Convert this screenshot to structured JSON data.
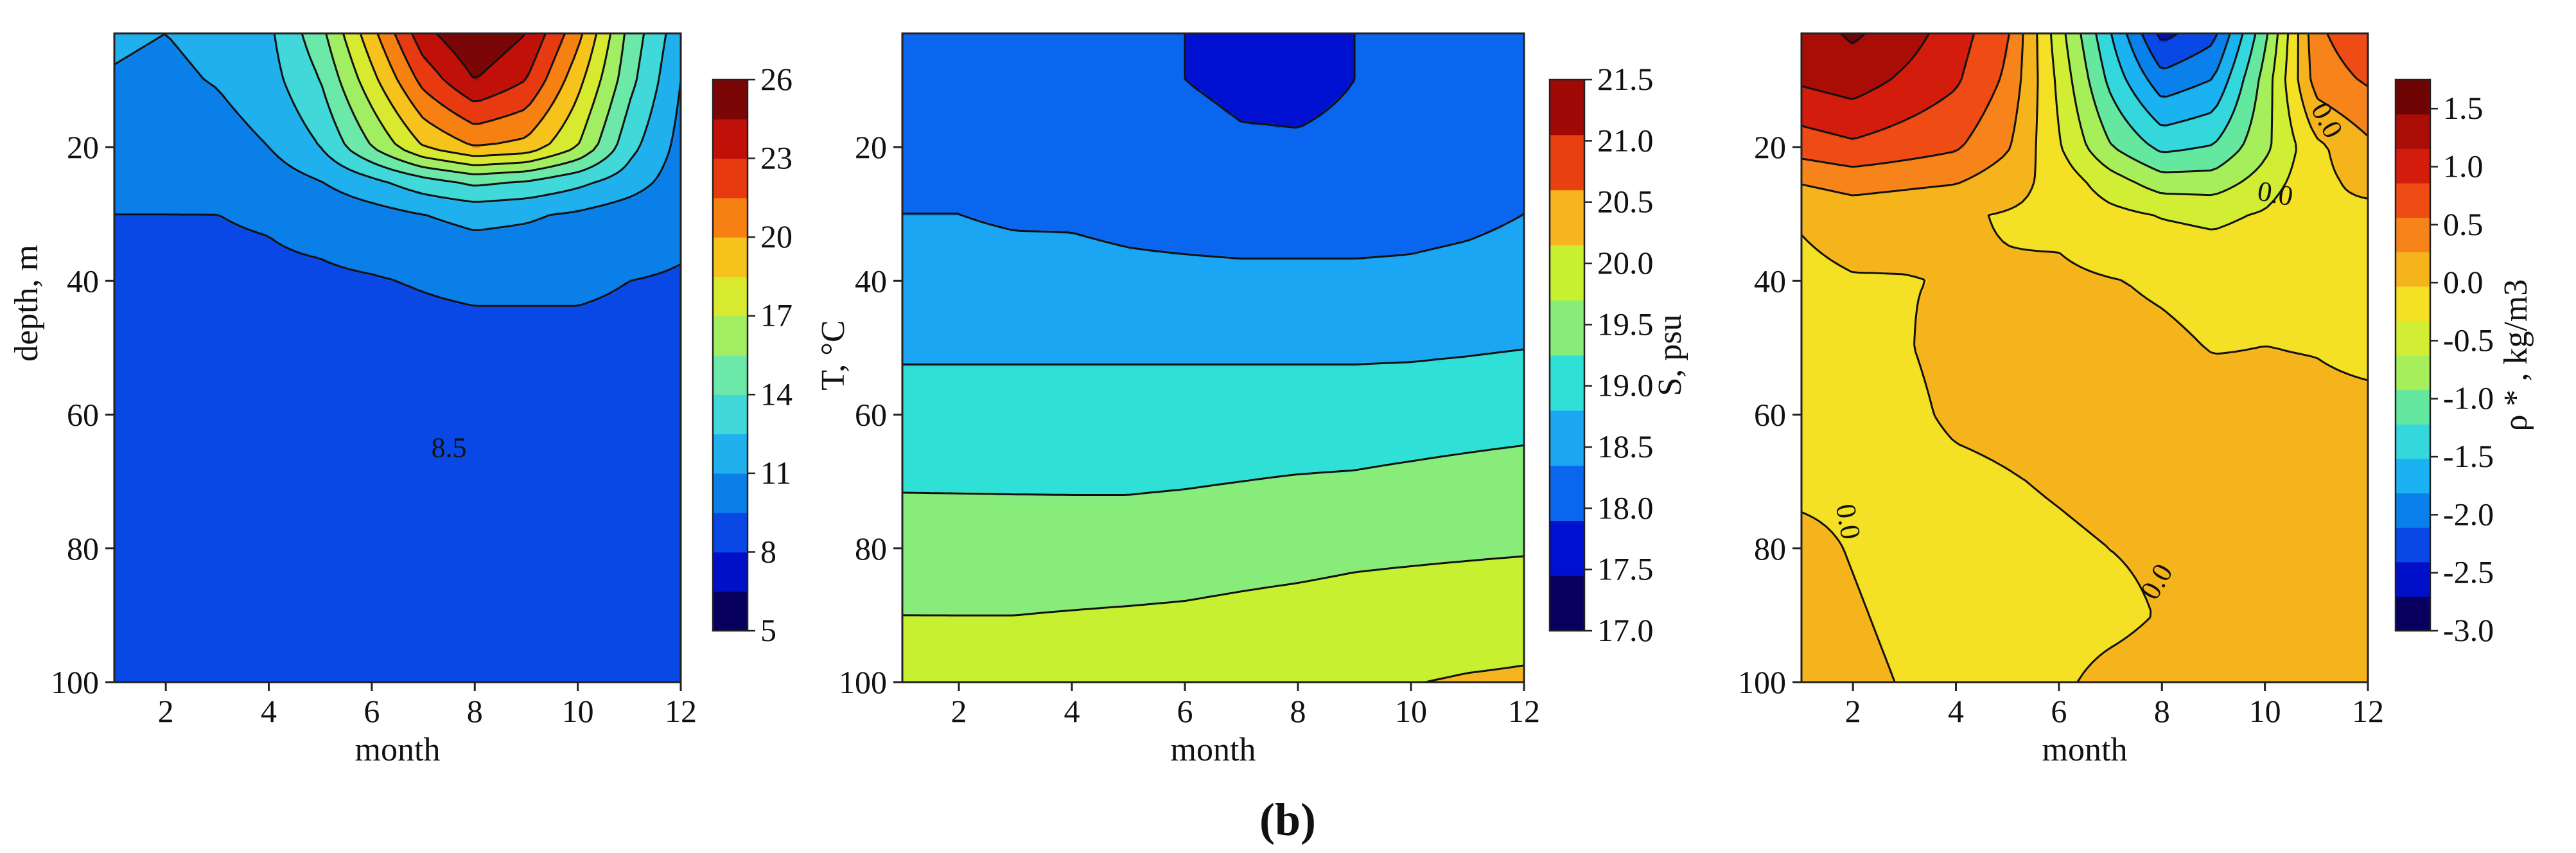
{
  "figure": {
    "panel_label": "(b)"
  },
  "chart_data": [
    {
      "type": "heatmap",
      "variable": "temperature",
      "xlabel": "month",
      "ylabel": "depth, m",
      "x_ticks": [
        2,
        4,
        6,
        8,
        10,
        12
      ],
      "y_ticks": [
        20,
        40,
        60,
        80,
        100
      ],
      "xlim": [
        1,
        12
      ],
      "ylim": [
        100,
        3
      ],
      "colorbar": {
        "label": "T, °C",
        "ticks": [
          26,
          23,
          20,
          17,
          14,
          11,
          8,
          5
        ],
        "range": [
          5,
          26
        ],
        "colors": [
          "#08005e",
          "#0010c8",
          "#0a48e6",
          "#0a7fe8",
          "#20b0ee",
          "#40d8d8",
          "#6ce8a8",
          "#a2ee62",
          "#d8ea30",
          "#f6c21c",
          "#f68012",
          "#e83a10",
          "#c01008",
          "#7a0606"
        ]
      },
      "contour_labels": [
        "8.5"
      ],
      "field": {
        "x": [
          1,
          2,
          3,
          4,
          5,
          6,
          7,
          8,
          9,
          10,
          11,
          12
        ],
        "depth": [
          3,
          10,
          20,
          25,
          30,
          40,
          50,
          60,
          70,
          80,
          90,
          100
        ],
        "values": [
          [
            11.2,
            11.0,
            11.4,
            12.2,
            15.0,
            19.5,
            24.0,
            26.0,
            24.5,
            20.5,
            15.0,
            11.5
          ],
          [
            10.9,
            10.7,
            11.1,
            11.9,
            14.0,
            18.0,
            22.0,
            24.5,
            23.0,
            19.0,
            14.5,
            11.0
          ],
          [
            10.0,
            9.9,
            10.3,
            11.0,
            12.5,
            15.5,
            18.5,
            20.0,
            19.5,
            17.0,
            13.0,
            10.5
          ],
          [
            9.8,
            9.6,
            9.8,
            10.2,
            11.0,
            12.2,
            13.5,
            14.5,
            14.0,
            13.0,
            11.8,
            10.2
          ],
          [
            9.5,
            9.5,
            9.5,
            9.6,
            9.9,
            10.4,
            11.0,
            11.4,
            11.2,
            10.8,
            10.2,
            9.8
          ],
          [
            9.2,
            9.4,
            9.3,
            9.3,
            9.3,
            9.4,
            9.6,
            9.8,
            9.8,
            9.8,
            9.5,
            9.4
          ],
          [
            8.9,
            9.0,
            9.0,
            9.0,
            9.0,
            9.0,
            9.0,
            9.0,
            9.0,
            9.0,
            9.0,
            9.0
          ],
          [
            8.6,
            8.5,
            8.5,
            8.5,
            8.5,
            8.5,
            8.5,
            8.6,
            8.6,
            8.7,
            8.8,
            8.9
          ],
          [
            8.3,
            8.3,
            8.3,
            8.3,
            8.3,
            8.3,
            8.3,
            8.3,
            8.3,
            8.4,
            8.5,
            8.6
          ],
          [
            8.2,
            8.2,
            8.2,
            8.2,
            8.2,
            8.2,
            8.2,
            8.2,
            8.2,
            8.3,
            8.4,
            8.5
          ],
          [
            8.1,
            8.1,
            8.1,
            8.1,
            8.1,
            8.1,
            8.1,
            8.1,
            8.1,
            8.2,
            8.3,
            8.4
          ],
          [
            8.0,
            8.0,
            8.0,
            8.0,
            8.0,
            8.0,
            8.0,
            8.0,
            8.0,
            8.1,
            8.2,
            8.3
          ]
        ]
      }
    },
    {
      "type": "heatmap",
      "variable": "salinity",
      "xlabel": "month",
      "ylabel": "",
      "x_ticks": [
        2,
        4,
        6,
        8,
        10,
        12
      ],
      "y_ticks": [
        20,
        40,
        60,
        80,
        100
      ],
      "xlim": [
        1,
        12
      ],
      "ylim": [
        100,
        3
      ],
      "colorbar": {
        "label": "S, psu",
        "ticks": [
          21.5,
          21.0,
          20.5,
          20.0,
          19.5,
          19.0,
          18.5,
          18.0,
          17.5,
          17.0
        ],
        "range": [
          17.0,
          21.5
        ],
        "colors": [
          "#08005e",
          "#0010d0",
          "#0a66ee",
          "#1aa6f2",
          "#2ee0d6",
          "#88ec7a",
          "#c6f030",
          "#f6b41e",
          "#e84010",
          "#a00a06"
        ]
      },
      "contour_labels": [],
      "field": {
        "x": [
          1,
          2,
          3,
          4,
          5,
          6,
          7,
          8,
          9,
          10,
          11,
          12
        ],
        "depth": [
          3,
          10,
          20,
          25,
          30,
          40,
          45,
          60,
          70,
          80,
          90,
          100
        ],
        "values": [
          [
            18.2,
            18.2,
            18.1,
            18.0,
            17.95,
            17.9,
            17.85,
            17.85,
            17.9,
            17.95,
            18.1,
            18.2
          ],
          [
            18.2,
            18.2,
            18.1,
            18.05,
            17.95,
            17.9,
            17.85,
            17.85,
            17.9,
            17.95,
            18.1,
            18.2
          ],
          [
            18.25,
            18.25,
            18.2,
            18.1,
            18.05,
            17.98,
            17.93,
            17.92,
            17.94,
            18.05,
            18.15,
            18.25
          ],
          [
            18.3,
            18.3,
            18.25,
            18.2,
            18.1,
            18.05,
            18.02,
            18.01,
            18.02,
            18.1,
            18.2,
            18.3
          ],
          [
            18.35,
            18.35,
            18.3,
            18.3,
            18.25,
            18.2,
            18.15,
            18.15,
            18.15,
            18.2,
            18.25,
            18.35
          ],
          [
            18.5,
            18.5,
            18.5,
            18.48,
            18.45,
            18.45,
            18.45,
            18.45,
            18.45,
            18.45,
            18.5,
            18.55
          ],
          [
            18.6,
            18.6,
            18.6,
            18.6,
            18.6,
            18.6,
            18.6,
            18.6,
            18.6,
            18.6,
            18.62,
            18.65
          ],
          [
            19.0,
            19.0,
            19.0,
            19.0,
            19.0,
            19.0,
            19.0,
            19.0,
            19.0,
            19.02,
            19.05,
            19.08
          ],
          [
            19.2,
            19.2,
            19.2,
            19.2,
            19.2,
            19.22,
            19.25,
            19.28,
            19.3,
            19.35,
            19.4,
            19.45
          ],
          [
            19.5,
            19.48,
            19.46,
            19.45,
            19.45,
            19.48,
            19.52,
            19.55,
            19.6,
            19.62,
            19.64,
            19.66
          ],
          [
            19.7,
            19.7,
            19.7,
            19.72,
            19.74,
            19.76,
            19.8,
            19.84,
            19.88,
            19.92,
            19.96,
            20.0
          ],
          [
            19.9,
            19.9,
            19.92,
            19.95,
            19.98,
            20.02,
            20.05,
            20.08,
            20.11,
            20.14,
            20.18,
            20.2
          ]
        ]
      }
    },
    {
      "type": "heatmap",
      "variable": "density anomaly",
      "xlabel": "month",
      "ylabel": "",
      "x_ticks": [
        2,
        4,
        6,
        8,
        10,
        12
      ],
      "y_ticks": [
        20,
        40,
        60,
        80,
        100
      ],
      "xlim": [
        1,
        12
      ],
      "ylim": [
        100,
        3
      ],
      "colorbar": {
        "label": "ρ * , kg/m3",
        "ticks": [
          1.5,
          1.0,
          0.5,
          0.0,
          -0.5,
          -1.0,
          -1.5,
          -2.0,
          -2.5,
          -3.0
        ],
        "range": [
          -3.0,
          1.75
        ],
        "colors": [
          "#08005e",
          "#0010c8",
          "#0a48e6",
          "#0a80ea",
          "#1ab2f0",
          "#34d8dc",
          "#64e8a0",
          "#a6ee5a",
          "#d2ee34",
          "#f4e024",
          "#f6b41c",
          "#f6841a",
          "#ee4c14",
          "#d41c0c",
          "#aa0c06",
          "#6e0404"
        ]
      },
      "contour_labels": [
        "0.0",
        "0.0",
        "0.0",
        "0.0"
      ],
      "field": {
        "x": [
          1,
          2,
          3,
          4,
          5,
          6,
          7,
          8,
          9,
          10,
          11,
          12
        ],
        "depth": [
          3,
          10,
          20,
          25,
          30,
          40,
          50,
          60,
          70,
          80,
          90,
          100
        ],
        "values": [
          [
            1.3,
            1.5,
            1.3,
            1.0,
            0.6,
            -0.5,
            -1.5,
            -2.5,
            -2.2,
            -1.0,
            0.5,
            0.8
          ],
          [
            1.2,
            1.3,
            1.1,
            0.9,
            0.5,
            -0.4,
            -1.3,
            -2.0,
            -1.8,
            -0.8,
            0.4,
            0.6
          ],
          [
            0.7,
            0.8,
            0.7,
            0.6,
            0.3,
            -0.3,
            -0.9,
            -1.3,
            -1.2,
            -0.7,
            -0.1,
            0.2
          ],
          [
            0.3,
            0.4,
            0.35,
            0.3,
            0.1,
            -0.15,
            -0.5,
            -0.8,
            -0.8,
            -0.5,
            -0.1,
            0.05
          ],
          [
            0.0,
            0.1,
            0.05,
            0.0,
            -0.05,
            -0.1,
            -0.25,
            -0.35,
            -0.4,
            -0.3,
            -0.05,
            -0.1
          ],
          [
            -0.1,
            -0.05,
            -0.04,
            -0.02,
            -0.01,
            0.02,
            -0.02,
            -0.06,
            -0.1,
            -0.08,
            -0.04,
            -0.12
          ],
          [
            -0.15,
            -0.12,
            -0.05,
            0.05,
            0.06,
            0.05,
            0.03,
            0.01,
            -0.04,
            -0.03,
            -0.04,
            -0.08
          ],
          [
            -0.2,
            -0.2,
            -0.1,
            0.02,
            0.05,
            0.1,
            0.1,
            0.08,
            0.05,
            0.03,
            0.02,
            0.02
          ],
          [
            -0.1,
            -0.1,
            -0.15,
            -0.1,
            -0.05,
            0.0,
            0.05,
            0.05,
            0.05,
            0.05,
            0.05,
            0.05
          ],
          [
            0.05,
            -0.05,
            -0.15,
            -0.15,
            -0.12,
            -0.08,
            -0.03,
            0.0,
            0.05,
            0.05,
            0.05,
            0.05
          ],
          [
            0.1,
            0.0,
            -0.1,
            -0.15,
            -0.15,
            -0.1,
            -0.08,
            -0.02,
            0.05,
            0.05,
            0.05,
            0.05
          ],
          [
            0.12,
            0.05,
            -0.05,
            -0.1,
            -0.1,
            -0.06,
            0.02,
            0.05,
            0.05,
            0.05,
            0.05,
            0.05
          ]
        ]
      }
    }
  ]
}
